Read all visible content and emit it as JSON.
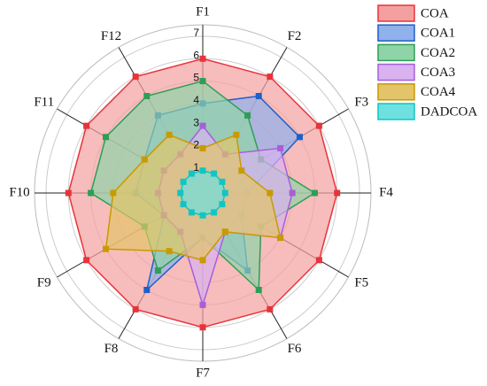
{
  "chart_data": {
    "type": "radar",
    "categories": [
      "F1",
      "F2",
      "F3",
      "F4",
      "F5",
      "F6",
      "F7",
      "F8",
      "F9",
      "F10",
      "F11",
      "F12"
    ],
    "series": [
      {
        "name": "COA",
        "color": "#e8333a",
        "fill": "#f4a0a0",
        "values": [
          6,
          6,
          6,
          6,
          6,
          6,
          6,
          6,
          6,
          6,
          6,
          6
        ]
      },
      {
        "name": "COA1",
        "color": "#1f5fc8",
        "fill": "#8fb1ec",
        "values": [
          4,
          5,
          5,
          2,
          2,
          4,
          2,
          5,
          2,
          3,
          3,
          4
        ]
      },
      {
        "name": "COA2",
        "color": "#2e9e55",
        "fill": "#8fd4a8",
        "values": [
          5,
          4,
          3,
          5,
          3,
          5,
          2,
          4,
          3,
          5,
          5,
          5
        ]
      },
      {
        "name": "COA3",
        "color": "#a65fd9",
        "fill": "#d9b2f0",
        "values": [
          3,
          2,
          4,
          4,
          4,
          2,
          5,
          2,
          2,
          2,
          2,
          2
        ]
      },
      {
        "name": "COA4",
        "color": "#c99a00",
        "fill": "#e3c46a",
        "values": [
          2,
          3,
          2,
          3,
          4,
          2,
          3,
          3,
          5,
          4,
          3,
          3
        ]
      },
      {
        "name": "DADCOA",
        "color": "#11c5c5",
        "fill": "#6ee0e0",
        "values": [
          1,
          1,
          1,
          1,
          1,
          1,
          1,
          1,
          1,
          1,
          1,
          1
        ]
      }
    ],
    "ylim": [
      0,
      7
    ],
    "yticks": [
      1,
      2,
      3,
      4,
      5,
      6,
      7
    ],
    "grid": true,
    "legend": "top-right"
  }
}
